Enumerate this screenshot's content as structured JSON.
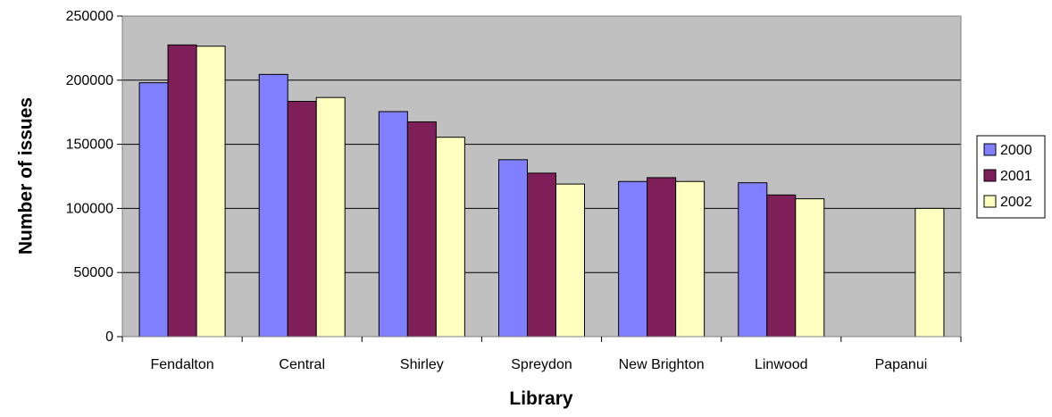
{
  "chart_data": {
    "type": "bar",
    "title": "",
    "xlabel": "Library",
    "ylabel": "Number of issues",
    "categories": [
      "Fendalton",
      "Central",
      "Shirley",
      "Spreydon",
      "New Brighton",
      "Linwood",
      "Papanui"
    ],
    "series": [
      {
        "name": "2000",
        "color": "#8080ff",
        "values": [
          198000,
          204500,
          175500,
          138000,
          121000,
          120000,
          null
        ]
      },
      {
        "name": "2001",
        "color": "#7f1f5a",
        "values": [
          227500,
          183500,
          167500,
          127500,
          124000,
          110500,
          null
        ]
      },
      {
        "name": "2002",
        "color": "#ffffc0",
        "values": [
          226500,
          186500,
          155500,
          119000,
          121000,
          107500,
          100000
        ]
      }
    ],
    "ylim": [
      0,
      250000
    ],
    "yticks": [
      "0",
      "50000",
      "100000",
      "150000",
      "200000",
      "250000"
    ],
    "grid": true,
    "plot_background": "#c0c0c0",
    "legend_position": "right"
  }
}
